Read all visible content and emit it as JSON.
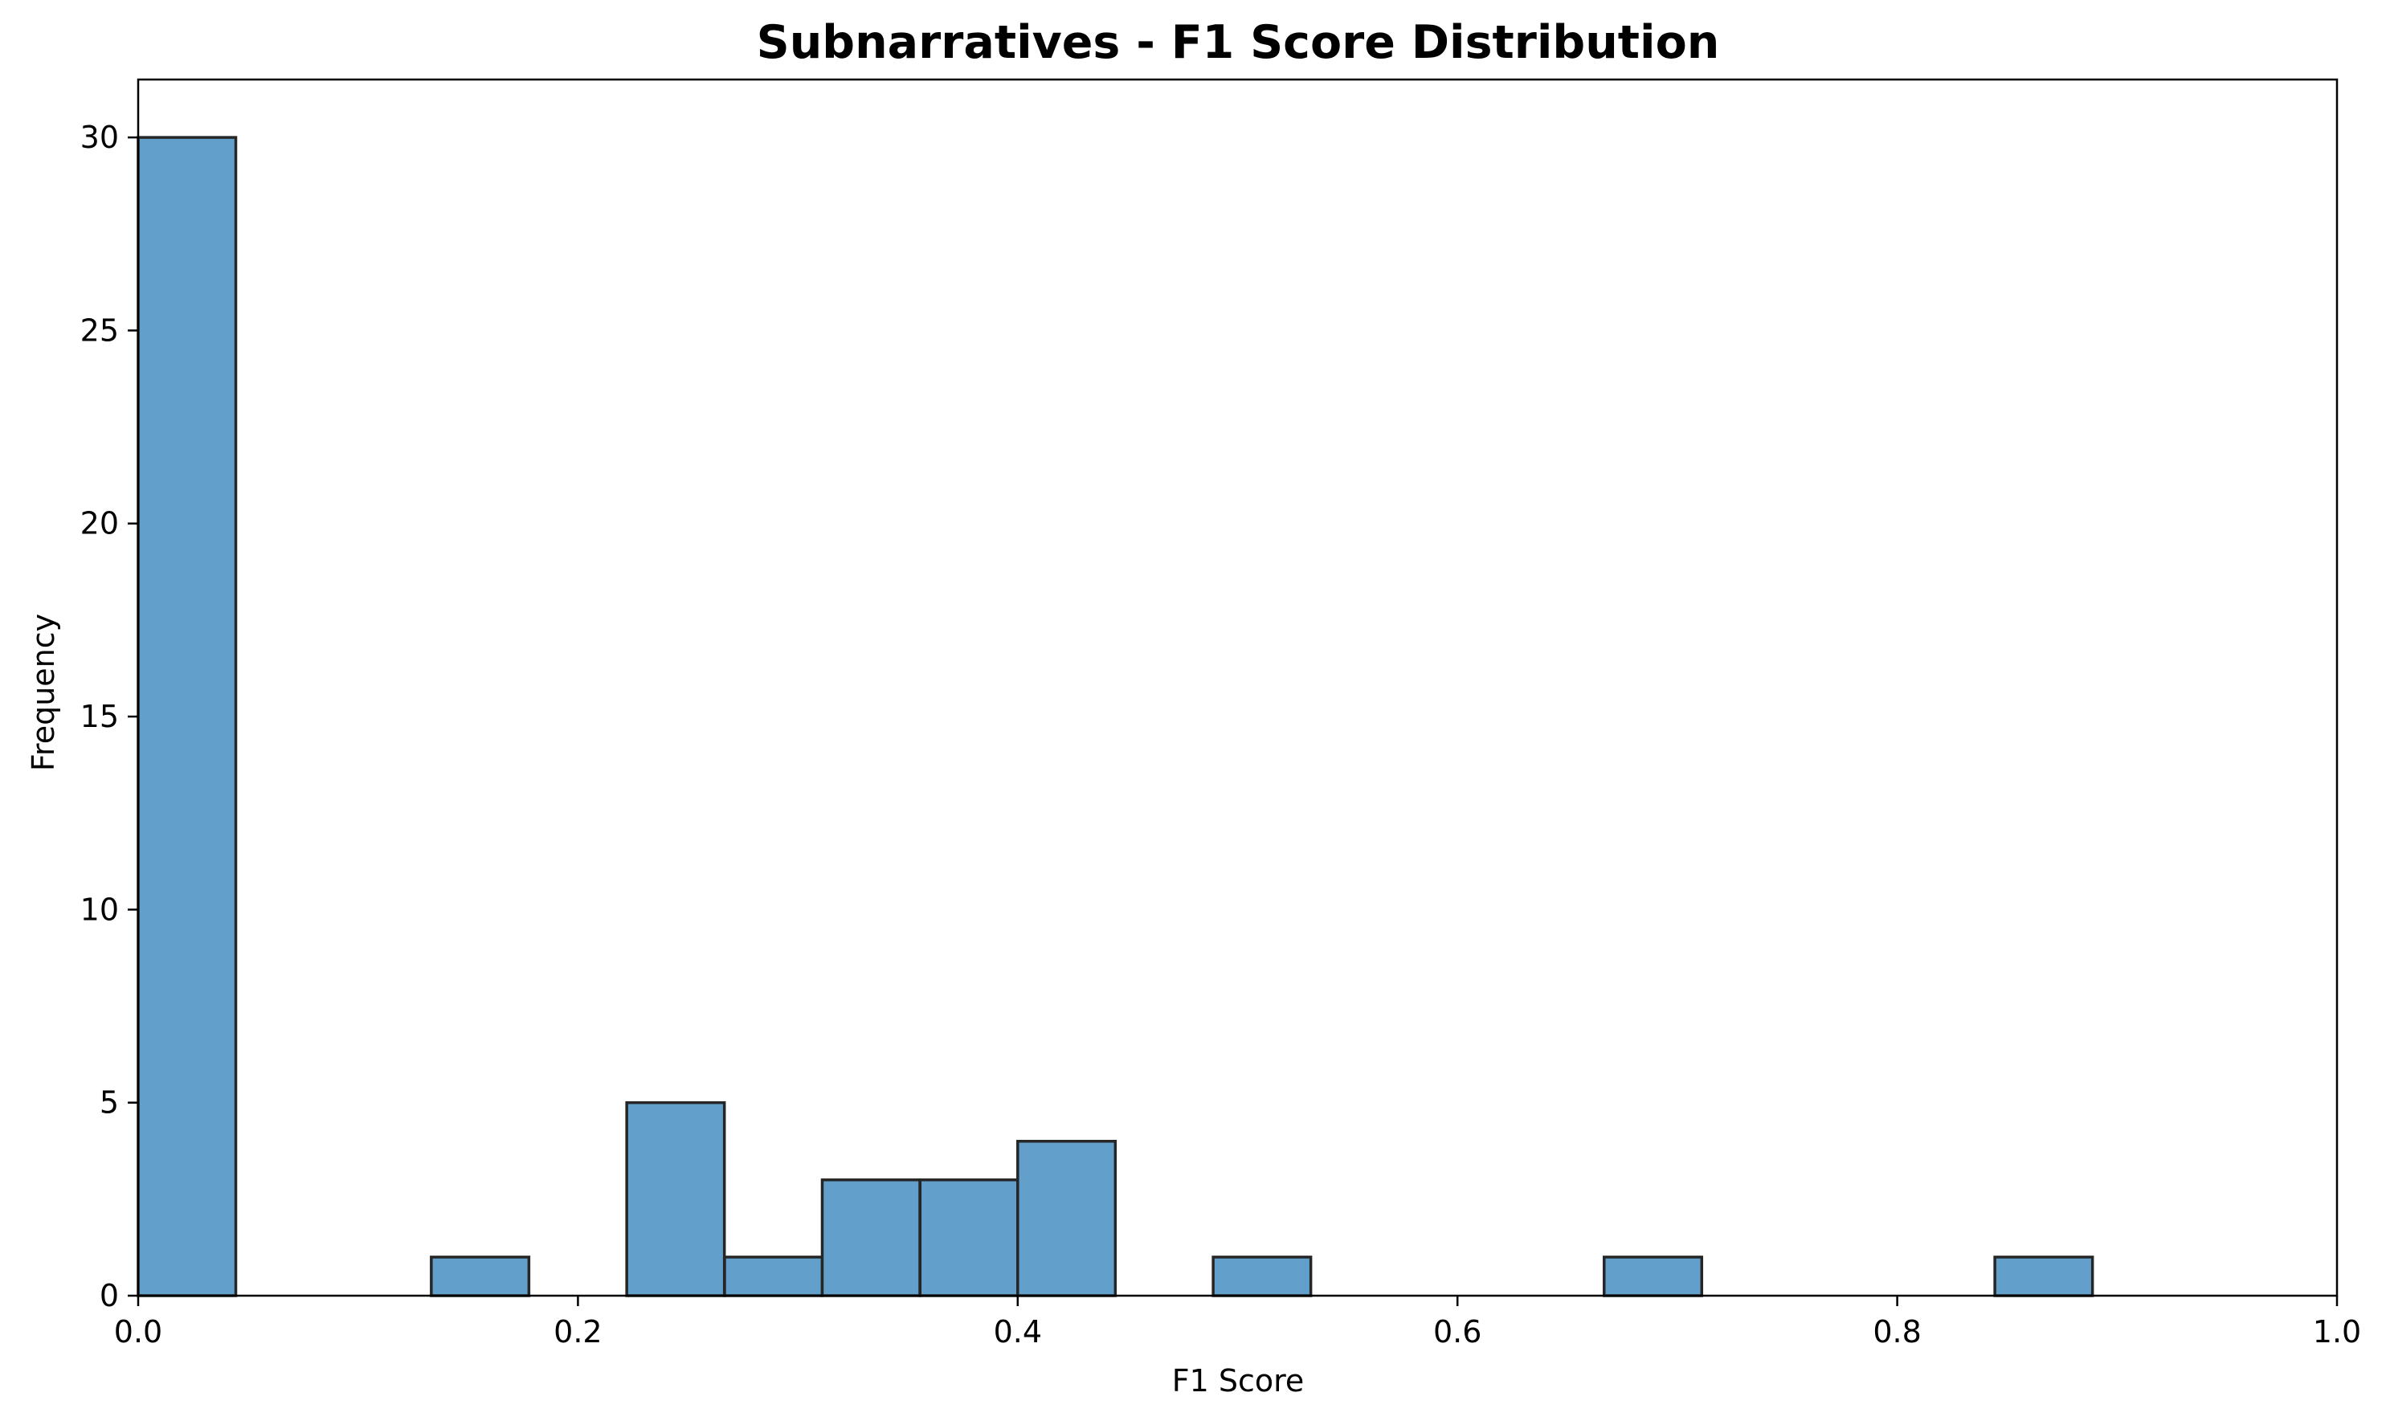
{
  "chart_data": {
    "type": "bar",
    "title": "Subnarratives - F1 Score Distribution",
    "xlabel": "F1 Score",
    "ylabel": "Frequency",
    "xlim": [
      0.0,
      1.0
    ],
    "ylim": [
      0,
      31.5
    ],
    "bin_width": 0.0444,
    "bin_edges": [
      0.0,
      0.0444,
      0.0889,
      0.1333,
      0.1778,
      0.2222,
      0.2667,
      0.3111,
      0.3556,
      0.4,
      0.4444,
      0.4889,
      0.5333,
      0.5778,
      0.6222,
      0.6667,
      0.7111,
      0.7556,
      0.8,
      0.8444,
      0.8889
    ],
    "values": [
      30,
      0,
      0,
      1,
      0,
      5,
      1,
      3,
      3,
      4,
      0,
      1,
      0,
      0,
      0,
      1,
      0,
      0,
      0,
      1
    ],
    "x_ticks": [
      0.0,
      0.2,
      0.4,
      0.6,
      0.8,
      1.0
    ],
    "x_tick_labels": [
      "0.0",
      "0.2",
      "0.4",
      "0.6",
      "0.8",
      "1.0"
    ],
    "y_ticks": [
      0,
      5,
      10,
      15,
      20,
      25,
      30
    ],
    "y_tick_labels": [
      "0",
      "5",
      "10",
      "15",
      "20",
      "25",
      "30"
    ],
    "grid": false,
    "colors": {
      "bar_fill": "#62a0cb",
      "bar_edge": "#262626",
      "axis": "#000000",
      "background": "#ffffff"
    }
  }
}
